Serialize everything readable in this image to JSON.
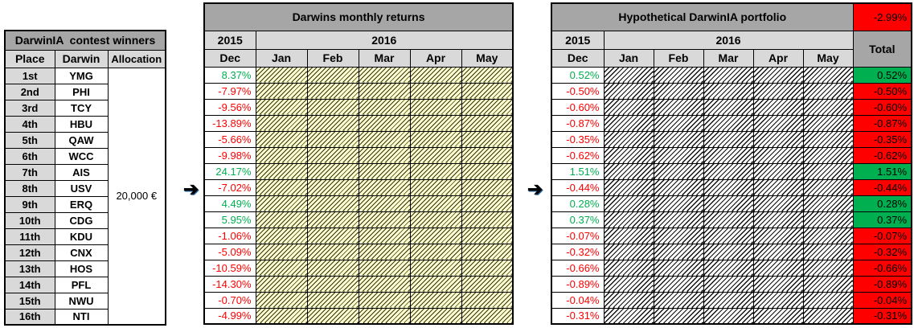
{
  "winners": {
    "title": "DarwinIA  contest winners",
    "columns": [
      "Place",
      "Darwin",
      "Allocation"
    ],
    "allocation": "20,000 €",
    "rows": [
      {
        "place": "1st",
        "darwin": "YMG"
      },
      {
        "place": "2nd",
        "darwin": "PHI"
      },
      {
        "place": "3rd",
        "darwin": "TCY"
      },
      {
        "place": "4th",
        "darwin": "HBU"
      },
      {
        "place": "5th",
        "darwin": "QAW"
      },
      {
        "place": "6th",
        "darwin": "WCC"
      },
      {
        "place": "7th",
        "darwin": "AIS"
      },
      {
        "place": "8th",
        "darwin": "USV"
      },
      {
        "place": "9th",
        "darwin": "ERQ"
      },
      {
        "place": "10th",
        "darwin": "CDG"
      },
      {
        "place": "11th",
        "darwin": "KDU"
      },
      {
        "place": "12th",
        "darwin": "CNX"
      },
      {
        "place": "13th",
        "darwin": "HOS"
      },
      {
        "place": "14th",
        "darwin": "PFL"
      },
      {
        "place": "15th",
        "darwin": "NWU"
      },
      {
        "place": "16th",
        "darwin": "NTI"
      }
    ]
  },
  "arrows": {
    "glyph": "➔"
  },
  "monthly_returns": {
    "title": "Darwins monthly returns",
    "year_2015": "2015",
    "year_2016": "2016",
    "months": [
      "Dec",
      "Jan",
      "Feb",
      "Mar",
      "Apr",
      "May"
    ],
    "dec_values": [
      "8.37%",
      "-7.97%",
      "-9.56%",
      "-13.89%",
      "-5.66%",
      "-9.98%",
      "24.17%",
      "-7.02%",
      "4.49%",
      "5.95%",
      "-1.06%",
      "-5.09%",
      "-10.59%",
      "-14.30%",
      "-0.70%",
      "-4.99%"
    ]
  },
  "portfolio": {
    "title": "Hypothetical DarwinIA portfolio",
    "header_total": "-2.99%",
    "total_label": "Total",
    "year_2015": "2015",
    "year_2016": "2016",
    "months": [
      "Dec",
      "Jan",
      "Feb",
      "Mar",
      "Apr",
      "May"
    ],
    "dec_values": [
      "0.52%",
      "-0.50%",
      "-0.60%",
      "-0.87%",
      "-0.35%",
      "-0.62%",
      "1.51%",
      "-0.44%",
      "0.28%",
      "0.37%",
      "-0.07%",
      "-0.32%",
      "-0.66%",
      "-0.89%",
      "-0.04%",
      "-0.31%"
    ],
    "total_values": [
      "0.52%",
      "-0.50%",
      "-0.60%",
      "-0.87%",
      "-0.35%",
      "-0.62%",
      "1.51%",
      "-0.44%",
      "0.28%",
      "0.37%",
      "-0.07%",
      "-0.32%",
      "-0.66%",
      "-0.89%",
      "-0.04%",
      "-0.31%"
    ]
  },
  "colors": {
    "title_gray": "#A6A6A6",
    "header_gray": "#D9D9D9",
    "positive_text": "#00B050",
    "negative_text": "#FF0000",
    "positive_bg": "#00B050",
    "negative_bg": "#FF0000",
    "hatch_yellow_bg": "#FFFFCC"
  }
}
